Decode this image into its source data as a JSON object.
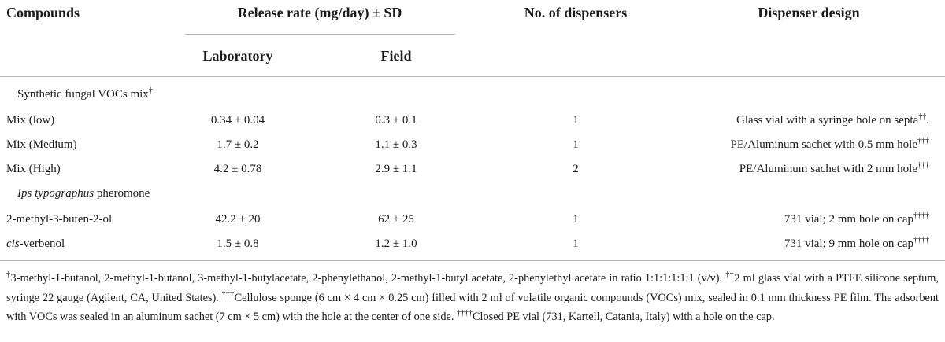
{
  "table": {
    "headers": {
      "compounds": "Compounds",
      "release_rate": "Release rate (mg/day) ± SD",
      "laboratory": "Laboratory",
      "field": "Field",
      "dispensers": "No. of dispensers",
      "design": "Dispenser design"
    },
    "sections": [
      {
        "label": "Synthetic fungal VOCs mix",
        "label_sup": "†",
        "rows": [
          {
            "compound": "Mix (low)",
            "laboratory": "0.34 ± 0.04",
            "field": "0.3 ± 0.1",
            "dispensers": 1,
            "design": "Glass vial with a syringe hole on septa",
            "design_sup": "††",
            "design_end": "."
          },
          {
            "compound": "Mix (Medium)",
            "laboratory": "1.7 ± 0.2",
            "field": "1.1 ± 0.3",
            "dispensers": 1,
            "design": "PE/Aluminum sachet with 0.5 mm hole",
            "design_sup": "†††"
          },
          {
            "compound": "Mix (High)",
            "laboratory": "4.2 ± 0.78",
            "field": "2.9 ± 1.1",
            "dispensers": 2,
            "design": "PE/Aluminum sachet with 2 mm hole",
            "design_sup": "†††"
          }
        ]
      },
      {
        "label_italic": "Ips typographus",
        "label": " pheromone",
        "rows": [
          {
            "compound": "2-methyl-3-buten-2-ol",
            "laboratory": "42.2 ± 20",
            "field": "62 ± 25",
            "dispensers": 1,
            "design": "731 vial; 2 mm hole on cap",
            "design_sup": "††††"
          },
          {
            "compound_italic": "cis",
            "compound": "-verbenol",
            "laboratory": "1.5 ± 0.8",
            "field": "1.2 ± 1.0",
            "dispensers": 1,
            "design": "731 vial; 9 mm hole on cap",
            "design_sup": "††††"
          }
        ]
      }
    ],
    "footnotes": [
      {
        "sup": "†",
        "text": "3-methyl-1-butanol, 2-methyl-1-butanol, 3-methyl-1-butylacetate, 2-phenylethanol, 2-methyl-1-butyl acetate, 2-phenylethyl acetate in ratio 1:1:1:1:1:1 (v/v)."
      },
      {
        "sup": "††",
        "text": "2 ml glass vial with a PTFE silicone septum, syringe 22 gauge (Agilent, CA, United States)."
      },
      {
        "sup": "†††",
        "text": "Cellulose sponge (6 cm × 4 cm × 0.25 cm) filled with 2 ml of volatile organic compounds (VOCs) mix, sealed in 0.1 mm thickness PE film. The adsorbent with VOCs was sealed in an aluminum sachet (7 cm × 5 cm) with the hole at the center of one side."
      },
      {
        "sup": "††††",
        "text": "Closed PE vial (731, Kartell, Catania, Italy) with a hole on the cap."
      }
    ]
  }
}
